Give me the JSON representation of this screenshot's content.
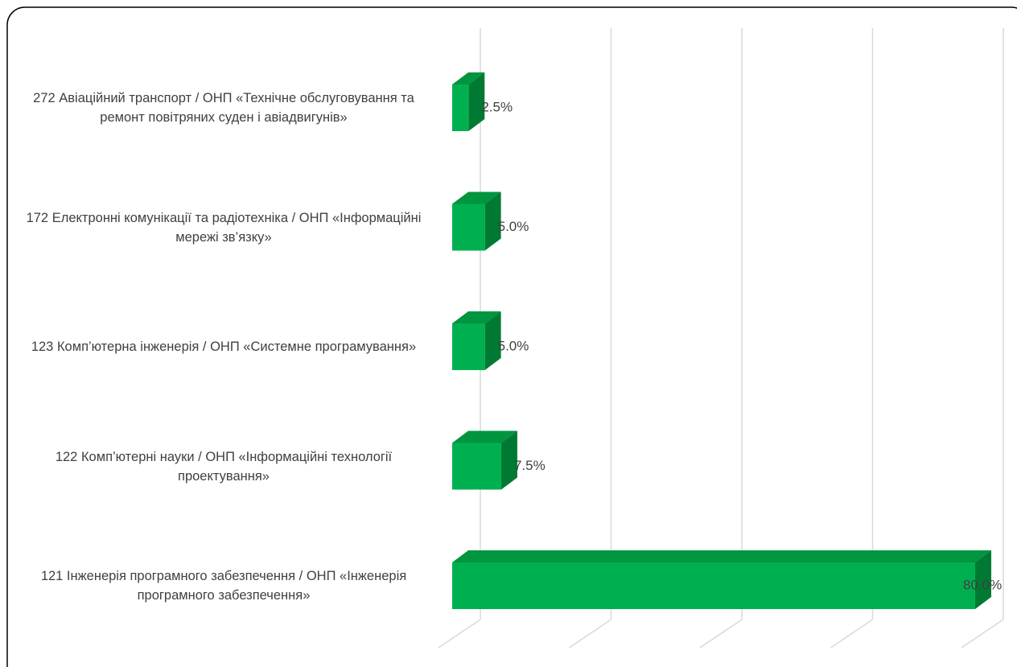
{
  "chart_data": {
    "type": "bar3d-horizontal",
    "categories": [
      "272 Авіаційний  транспорт /  ОНП «Технічне обслуговування та ремонт повітряних суден і авіадвигунів»",
      "172 Електронні комунікації та радіотехніка / ОНП «Інформаційні мережі зв’язку»",
      "123 Комп’ютерна інженерія / ОНП «Системне програмування»",
      "122 Комп’ютерні науки / ОНП «Інформаційні технології проектування»",
      "121 Інженерія програмного забезпечення / ОНП «Інженерія програмного забезпечення»"
    ],
    "values": [
      2.5,
      5.0,
      5.0,
      7.5,
      80.0
    ],
    "value_labels": [
      "2.5%",
      "5.0%",
      "5.0%",
      "7.5%",
      "80.0%"
    ],
    "color": "#00b050",
    "xlim": [
      0,
      80
    ],
    "xticks": [
      0,
      20,
      40,
      60,
      80
    ],
    "grid": true
  }
}
